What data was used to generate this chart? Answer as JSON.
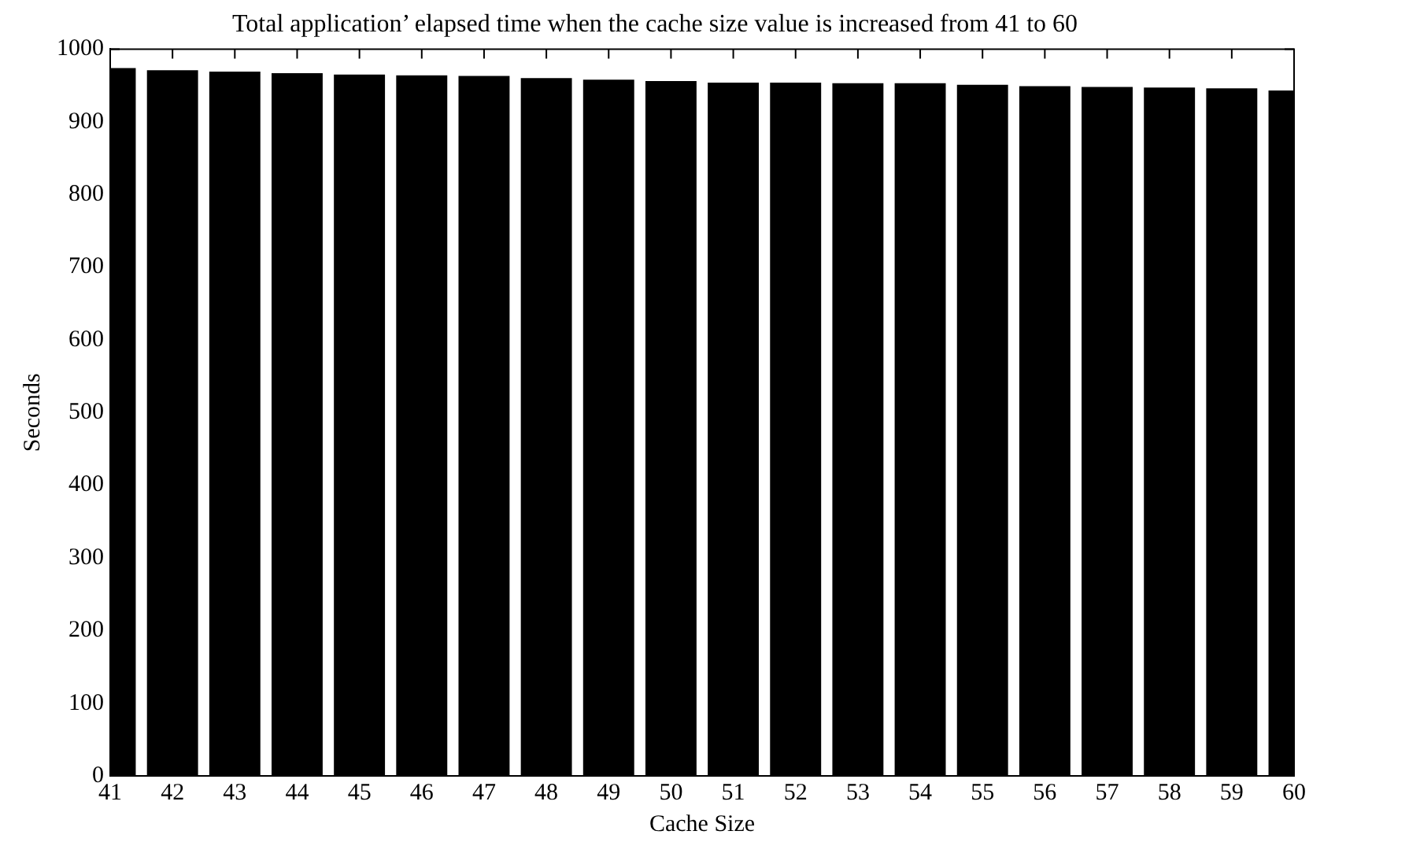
{
  "chart_data": {
    "type": "bar",
    "title": "Total application’ elapsed time when the cache size value is increased from 41 to 60",
    "xlabel": "Cache Size",
    "ylabel": "Seconds",
    "x": [
      41,
      42,
      43,
      44,
      45,
      46,
      47,
      48,
      49,
      50,
      51,
      52,
      53,
      54,
      55,
      56,
      57,
      58,
      59,
      60
    ],
    "values": [
      974,
      971,
      969,
      967,
      965,
      964,
      963,
      960,
      958,
      956,
      954,
      954,
      953,
      953,
      951,
      949,
      948,
      947,
      946,
      943
    ],
    "color": "#000000",
    "xlim": [
      41,
      60
    ],
    "xticks": [
      41,
      42,
      43,
      44,
      45,
      46,
      47,
      48,
      49,
      50,
      51,
      52,
      53,
      54,
      55,
      56,
      57,
      58,
      59,
      60
    ],
    "ylim": [
      0,
      1000
    ],
    "yticks": [
      0,
      100,
      200,
      300,
      400,
      500,
      600,
      700,
      800,
      900,
      1000
    ],
    "grid": false,
    "legend": false
  }
}
